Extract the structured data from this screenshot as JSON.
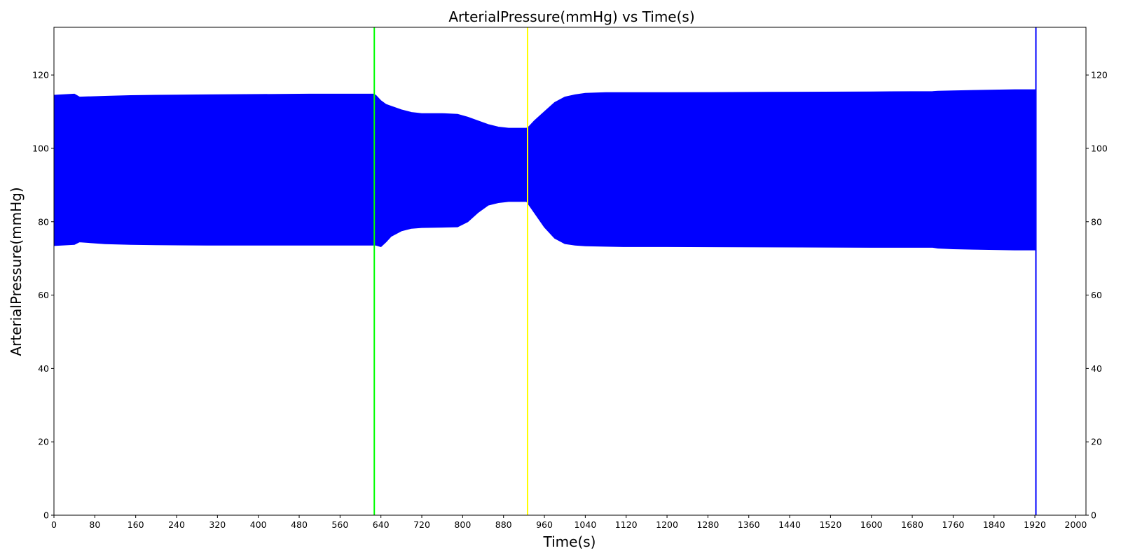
{
  "chart_data": {
    "type": "area",
    "title": "ArterialPressure(mmHg) vs Time(s)",
    "xlabel": "Time(s)",
    "ylabel": "ArterialPressure(mmHg)",
    "xlim": [
      0,
      2020
    ],
    "ylim": [
      0,
      133
    ],
    "xticks": [
      "0",
      "80",
      "160",
      "240",
      "320",
      "400",
      "480",
      "560",
      "640",
      "720",
      "800",
      "880",
      "960",
      "1040",
      "1120",
      "1200",
      "1280",
      "1360",
      "1440",
      "1520",
      "1600",
      "1680",
      "1760",
      "1840",
      "1920",
      "2000"
    ],
    "yticks": [
      "0",
      "20",
      "40",
      "60",
      "80",
      "100",
      "120"
    ],
    "right_axis_ticks": true,
    "grid": false,
    "series": [
      {
        "color": "#0000ff",
        "x": [
          0,
          40,
          50,
          100,
          150,
          200,
          300,
          400,
          500,
          625,
          630,
          640,
          650,
          660,
          680,
          700,
          720,
          760,
          790,
          810,
          830,
          850,
          870,
          890,
          925,
          930,
          940,
          960,
          980,
          1000,
          1020,
          1040,
          1080,
          1120,
          1200,
          1400,
          1600,
          1720,
          1730,
          1760,
          1800,
          1840,
          1880,
          1920
        ],
        "upper": [
          114.5,
          114.8,
          114.0,
          114.2,
          114.4,
          114.5,
          114.6,
          114.7,
          114.8,
          114.8,
          114.5,
          113.0,
          112.0,
          111.5,
          110.5,
          109.8,
          109.5,
          109.5,
          109.3,
          108.5,
          107.5,
          106.5,
          105.8,
          105.5,
          105.5,
          106.0,
          107.5,
          110.0,
          112.5,
          114.0,
          114.6,
          115.0,
          115.2,
          115.2,
          115.2,
          115.3,
          115.4,
          115.5,
          115.6,
          115.7,
          115.8,
          115.9,
          116.0,
          116.0
        ],
        "lower": [
          73.5,
          73.8,
          74.5,
          74.0,
          73.8,
          73.7,
          73.6,
          73.6,
          73.6,
          73.6,
          73.6,
          73.2,
          74.5,
          76.0,
          77.5,
          78.2,
          78.4,
          78.5,
          78.6,
          80.0,
          82.5,
          84.5,
          85.2,
          85.5,
          85.5,
          84.5,
          82.5,
          78.5,
          75.5,
          74.0,
          73.6,
          73.4,
          73.3,
          73.2,
          73.2,
          73.1,
          73.0,
          73.0,
          72.8,
          72.6,
          72.5,
          72.4,
          72.3,
          72.3
        ]
      }
    ],
    "vertical_lines": [
      {
        "x": 627,
        "color": "#00ff00"
      },
      {
        "x": 927,
        "color": "#ffff00"
      },
      {
        "x": 1922,
        "color": "#0000ff"
      }
    ]
  }
}
